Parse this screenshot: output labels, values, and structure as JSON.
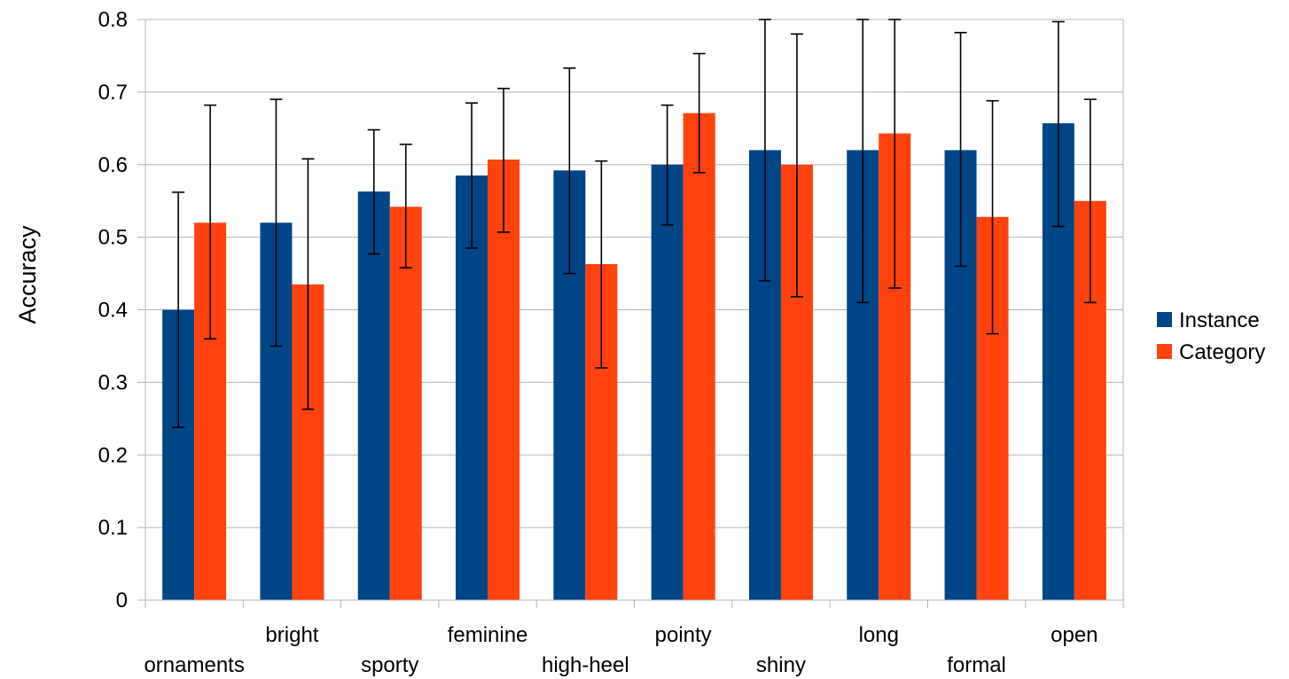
{
  "chart_data": {
    "type": "bar",
    "ylabel": "Accuracy",
    "xlabel": "",
    "ylim": [
      0,
      0.8
    ],
    "yticks": [
      "0",
      "0.1",
      "0.2",
      "0.3",
      "0.4",
      "0.5",
      "0.6",
      "0.7",
      "0.8"
    ],
    "grid": true,
    "legend_position": "right",
    "categories": [
      "ornaments",
      "bright",
      "sporty",
      "feminine",
      "high-heel",
      "pointy",
      "shiny",
      "long",
      "formal",
      "open"
    ],
    "series": [
      {
        "name": "Instance",
        "color": "#004586",
        "values": [
          0.4,
          0.52,
          0.563,
          0.585,
          0.592,
          0.6,
          0.62,
          0.62,
          0.62,
          0.657
        ],
        "error_low": [
          0.238,
          0.35,
          0.477,
          0.485,
          0.45,
          0.517,
          0.44,
          0.41,
          0.46,
          0.515
        ],
        "error_high": [
          0.562,
          0.69,
          0.648,
          0.685,
          0.733,
          0.682,
          0.8,
          0.8,
          0.782,
          0.797
        ]
      },
      {
        "name": "Category",
        "color": "#ff420e",
        "values": [
          0.52,
          0.435,
          0.542,
          0.607,
          0.463,
          0.671,
          0.6,
          0.643,
          0.528,
          0.55
        ],
        "error_low": [
          0.36,
          0.263,
          0.458,
          0.507,
          0.32,
          0.589,
          0.418,
          0.43,
          0.367,
          0.41
        ],
        "error_high": [
          0.682,
          0.608,
          0.628,
          0.705,
          0.605,
          0.753,
          0.78,
          0.8,
          0.688,
          0.69
        ]
      }
    ]
  }
}
